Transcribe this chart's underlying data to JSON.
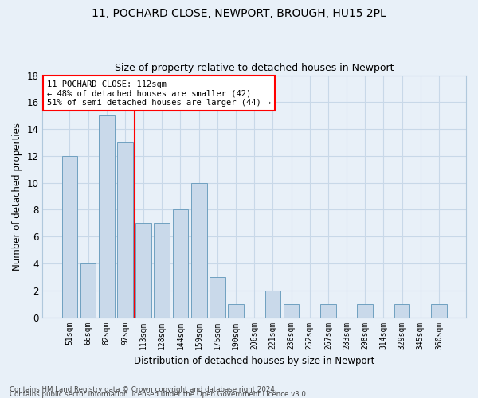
{
  "title_line1": "11, POCHARD CLOSE, NEWPORT, BROUGH, HU15 2PL",
  "title_line2": "Size of property relative to detached houses in Newport",
  "xlabel": "Distribution of detached houses by size in Newport",
  "ylabel": "Number of detached properties",
  "categories": [
    "51sqm",
    "66sqm",
    "82sqm",
    "97sqm",
    "113sqm",
    "128sqm",
    "144sqm",
    "159sqm",
    "175sqm",
    "190sqm",
    "206sqm",
    "221sqm",
    "236sqm",
    "252sqm",
    "267sqm",
    "283sqm",
    "298sqm",
    "314sqm",
    "329sqm",
    "345sqm",
    "360sqm"
  ],
  "values": [
    12,
    4,
    15,
    13,
    7,
    7,
    8,
    10,
    3,
    1,
    0,
    2,
    1,
    0,
    1,
    0,
    1,
    0,
    1,
    0,
    1
  ],
  "bar_color": "#c9d9ea",
  "bar_edge_color": "#6fa0c0",
  "grid_color": "#c8d8e8",
  "background_color": "#e8f0f8",
  "property_line_index": 4,
  "annotation_line1": "11 POCHARD CLOSE: 112sqm",
  "annotation_line2": "← 48% of detached houses are smaller (42)",
  "annotation_line3": "51% of semi-detached houses are larger (44) →",
  "annotation_box_color": "white",
  "annotation_box_edge_color": "red",
  "property_line_color": "red",
  "footnote_line1": "Contains HM Land Registry data © Crown copyright and database right 2024.",
  "footnote_line2": "Contains public sector information licensed under the Open Government Licence v3.0.",
  "ylim": [
    0,
    18
  ],
  "yticks": [
    0,
    2,
    4,
    6,
    8,
    10,
    12,
    14,
    16,
    18
  ]
}
